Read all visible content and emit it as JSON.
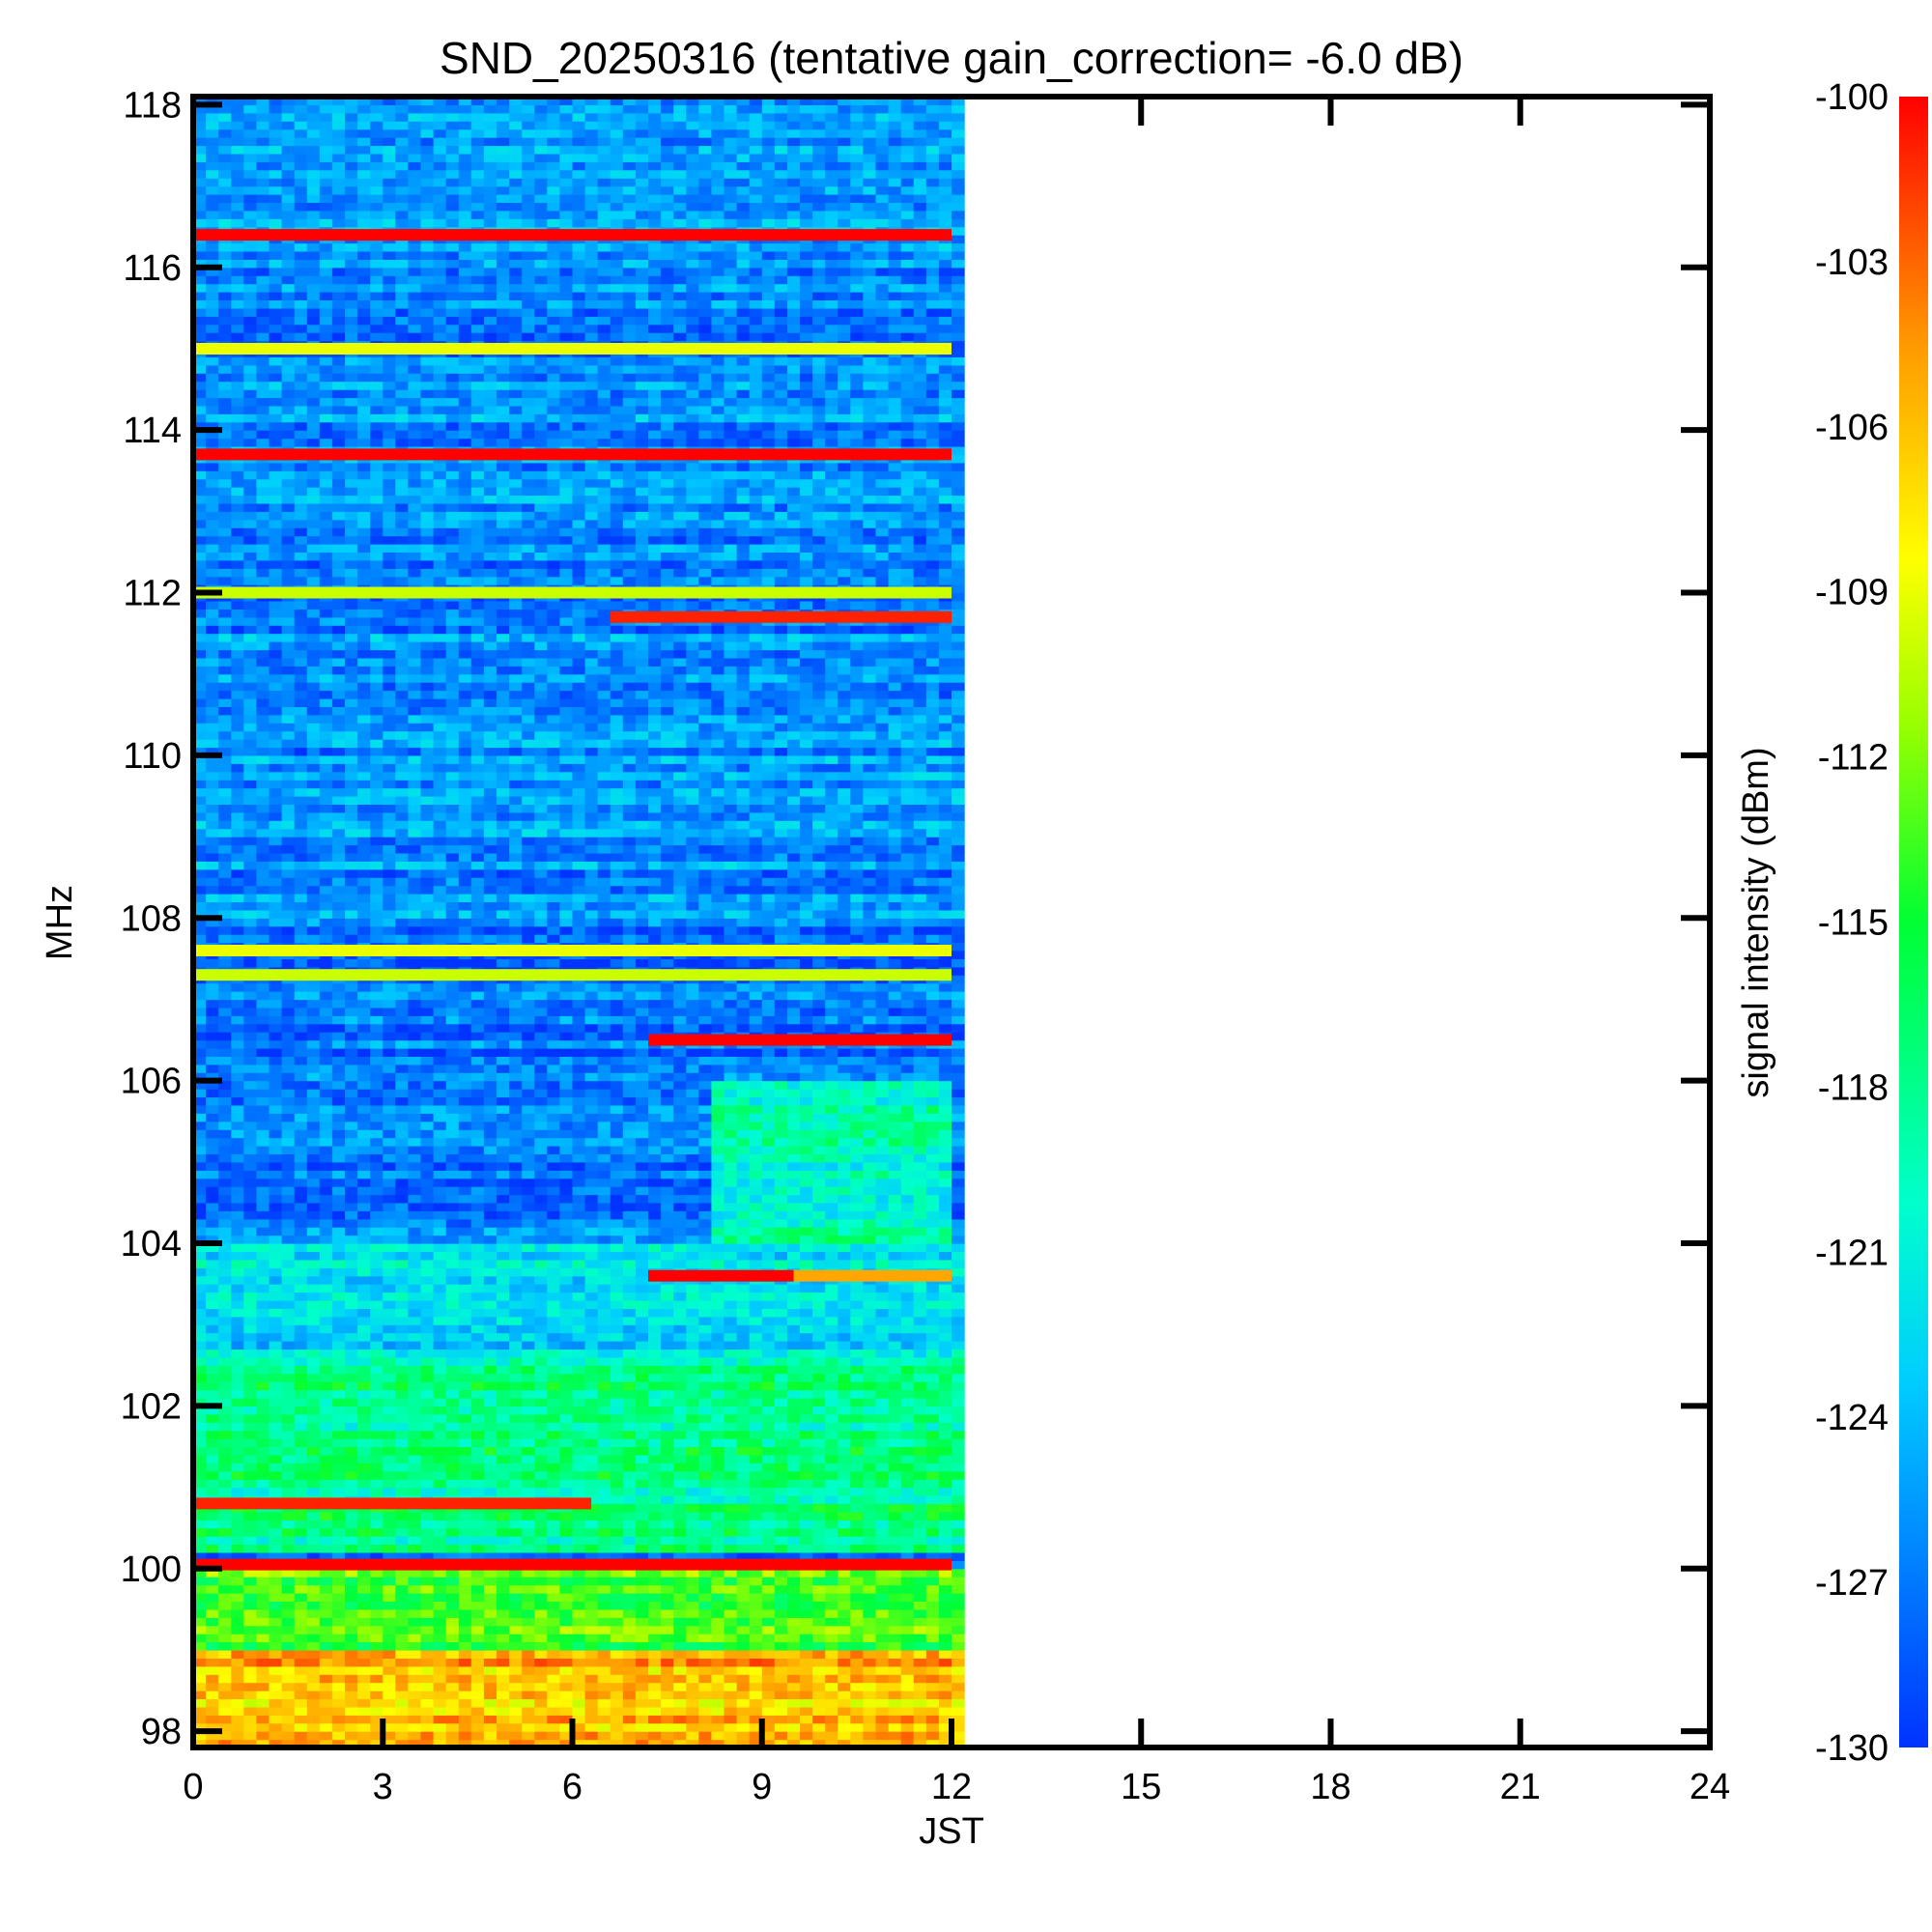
{
  "chart_data": {
    "type": "heatmap",
    "title": "SND_20250316 (tentative gain_correction= -6.0 dB)",
    "xlabel": "JST",
    "ylabel": "MHz",
    "xlim": [
      0,
      24
    ],
    "ylim": [
      97.8,
      118.1
    ],
    "x_ticks": [
      0,
      3,
      6,
      9,
      12,
      15,
      18,
      21,
      24
    ],
    "y_ticks": [
      98,
      100,
      102,
      104,
      106,
      108,
      110,
      112,
      114,
      116,
      118
    ],
    "data_end_hour": 12,
    "colorbar": {
      "label": "signal intensity (dBm)",
      "min": -130,
      "max": -100,
      "ticks": [
        -100,
        -103,
        -106,
        -109,
        -112,
        -115,
        -118,
        -121,
        -124,
        -127,
        -130
      ]
    },
    "strong_signals": [
      {
        "freq_mhz": 116.4,
        "start_hour": 0,
        "end_hour": 12,
        "dbm": -100
      },
      {
        "freq_mhz": 115.0,
        "start_hour": 0,
        "end_hour": 12,
        "dbm": -109
      },
      {
        "freq_mhz": 113.7,
        "start_hour": 0,
        "end_hour": 12,
        "dbm": -100
      },
      {
        "freq_mhz": 112.0,
        "start_hour": 0,
        "end_hour": 12,
        "dbm": -110
      },
      {
        "freq_mhz": 111.7,
        "start_hour": 6.6,
        "end_hour": 12,
        "dbm": -101
      },
      {
        "freq_mhz": 107.6,
        "start_hour": 0,
        "end_hour": 12,
        "dbm": -109
      },
      {
        "freq_mhz": 107.3,
        "start_hour": 0,
        "end_hour": 12,
        "dbm": -110
      },
      {
        "freq_mhz": 106.5,
        "start_hour": 7.2,
        "end_hour": 12,
        "dbm": -100
      },
      {
        "freq_mhz": 103.6,
        "start_hour": 7.2,
        "end_hour": 9.5,
        "dbm": -100
      },
      {
        "freq_mhz": 103.6,
        "start_hour": 9.5,
        "end_hour": 12,
        "dbm": -105
      },
      {
        "freq_mhz": 100.8,
        "start_hour": 0,
        "end_hour": 6.3,
        "dbm": -101
      },
      {
        "freq_mhz": 100.05,
        "start_hour": 0,
        "end_hour": 12,
        "dbm": -100
      }
    ],
    "background_levels_dbm": [
      {
        "freq_range_mhz": [
          108.2,
          118.1
        ],
        "dbm": -126
      },
      {
        "freq_range_mhz": [
          104.0,
          108.0
        ],
        "dbm": -127
      },
      {
        "freq_range_mhz": [
          104.0,
          106.0
        ],
        "start_hour": 8.3,
        "end_hour": 12,
        "dbm": -120
      },
      {
        "freq_range_mhz": [
          102.6,
          104.0
        ],
        "dbm": -122
      },
      {
        "freq_range_mhz": [
          100.2,
          102.6
        ],
        "dbm": -118
      },
      {
        "freq_range_mhz": [
          99.0,
          100.0
        ],
        "dbm": -113
      },
      {
        "freq_range_mhz": [
          97.8,
          99.0
        ],
        "dbm": -106
      }
    ]
  }
}
